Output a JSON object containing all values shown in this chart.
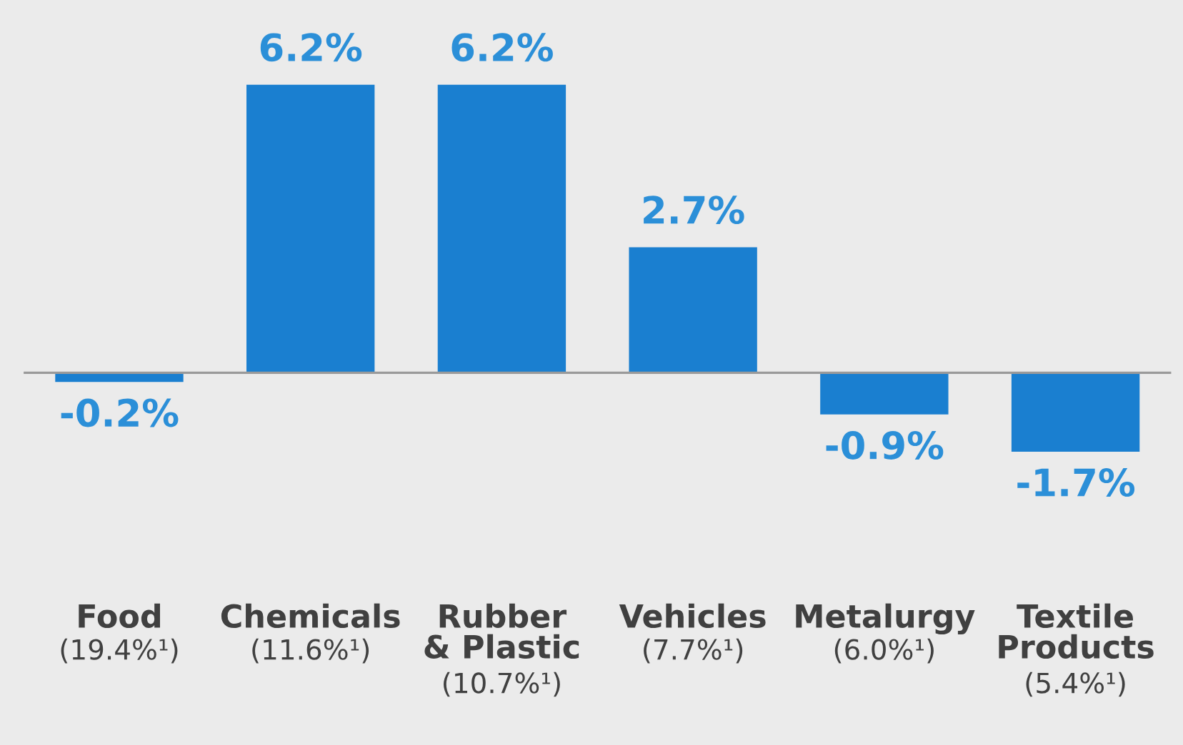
{
  "chart_data": {
    "type": "bar",
    "categories": [
      "Food\n(19.4%¹)",
      "Chemicals\n(11.6%¹)",
      "Rubber\n& Plastic\n(10.7%¹)",
      "Vehicles\n(7.7%¹)",
      "Metalurgy\n(6.0%¹)",
      "Textile\nProducts\n(5.4%¹)"
    ],
    "values": [
      -0.2,
      6.2,
      6.2,
      2.7,
      -0.9,
      -1.7
    ],
    "value_labels": [
      "-0.2%",
      "6.2%",
      "6.2%",
      "2.7%",
      "-0.9%",
      "-1.7%"
    ],
    "color": "#1a7fd0"
  }
}
